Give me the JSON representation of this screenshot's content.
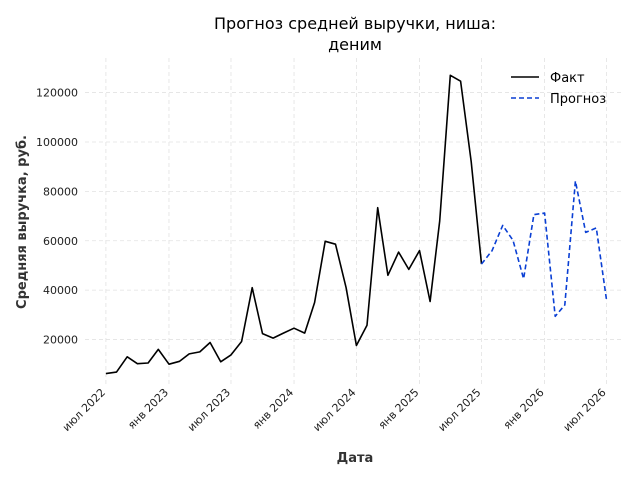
{
  "chart_data": {
    "type": "line",
    "title_line1": "Прогноз средней выручки, ниша:",
    "title_line2": "деним",
    "xlabel": "Дата",
    "ylabel": "Средняя выручка, руб.",
    "x_ticks": [
      {
        "date": "2022-07-01",
        "label": "июл 2022"
      },
      {
        "date": "2023-01-01",
        "label": "янв 2023"
      },
      {
        "date": "2023-07-01",
        "label": "июл 2023"
      },
      {
        "date": "2024-01-01",
        "label": "янв 2024"
      },
      {
        "date": "2024-07-01",
        "label": "июл 2024"
      },
      {
        "date": "2025-01-01",
        "label": "янв 2025"
      },
      {
        "date": "2025-07-01",
        "label": "июл 2025"
      },
      {
        "date": "2026-01-01",
        "label": "янв 2026"
      },
      {
        "date": "2026-07-01",
        "label": "июл 2026"
      }
    ],
    "y_ticks": [
      20000,
      40000,
      60000,
      80000,
      100000,
      120000
    ],
    "xlim": [
      "2022-05-01",
      "2026-08-15"
    ],
    "ylim": [
      2000,
      134000
    ],
    "grid": true,
    "legend_position": "top-right",
    "series": [
      {
        "name": "Факт",
        "style": "solid",
        "color": "#000000",
        "points": [
          [
            "2022-07-01",
            6200
          ],
          [
            "2022-08-01",
            6800
          ],
          [
            "2022-09-01",
            13000
          ],
          [
            "2022-10-01",
            10200
          ],
          [
            "2022-11-01",
            10500
          ],
          [
            "2022-12-01",
            16000
          ],
          [
            "2023-01-01",
            10000
          ],
          [
            "2023-02-01",
            11200
          ],
          [
            "2023-03-01",
            14200
          ],
          [
            "2023-04-01",
            15000
          ],
          [
            "2023-05-01",
            18800
          ],
          [
            "2023-06-01",
            11000
          ],
          [
            "2023-07-01",
            13800
          ],
          [
            "2023-08-01",
            19200
          ],
          [
            "2023-09-01",
            41000
          ],
          [
            "2023-10-01",
            22400
          ],
          [
            "2023-11-01",
            20600
          ],
          [
            "2023-12-01",
            22600
          ],
          [
            "2024-01-01",
            24600
          ],
          [
            "2024-02-01",
            22600
          ],
          [
            "2024-03-01",
            35000
          ],
          [
            "2024-04-01",
            59800
          ],
          [
            "2024-05-01",
            58600
          ],
          [
            "2024-06-01",
            41000
          ],
          [
            "2024-07-01",
            17600
          ],
          [
            "2024-08-01",
            25800
          ],
          [
            "2024-09-01",
            73400
          ],
          [
            "2024-10-01",
            46000
          ],
          [
            "2024-11-01",
            55400
          ],
          [
            "2024-12-01",
            48400
          ],
          [
            "2025-01-01",
            56000
          ],
          [
            "2025-02-01",
            35400
          ],
          [
            "2025-03-01",
            68000
          ],
          [
            "2025-04-01",
            127000
          ],
          [
            "2025-05-01",
            124600
          ],
          [
            "2025-06-01",
            92000
          ],
          [
            "2025-07-01",
            50600
          ]
        ]
      },
      {
        "name": "Прогноз",
        "style": "dashed",
        "color": "#0a3fd4",
        "points": [
          [
            "2025-07-01",
            50600
          ],
          [
            "2025-08-01",
            56000
          ],
          [
            "2025-09-01",
            66200
          ],
          [
            "2025-10-01",
            60200
          ],
          [
            "2025-11-01",
            44600
          ],
          [
            "2025-12-01",
            70600
          ],
          [
            "2026-01-01",
            71200
          ],
          [
            "2026-02-01",
            29400
          ],
          [
            "2026-03-01",
            34000
          ],
          [
            "2026-04-01",
            84200
          ],
          [
            "2026-05-01",
            63400
          ],
          [
            "2026-06-01",
            65200
          ],
          [
            "2026-07-01",
            35800
          ]
        ]
      }
    ]
  }
}
